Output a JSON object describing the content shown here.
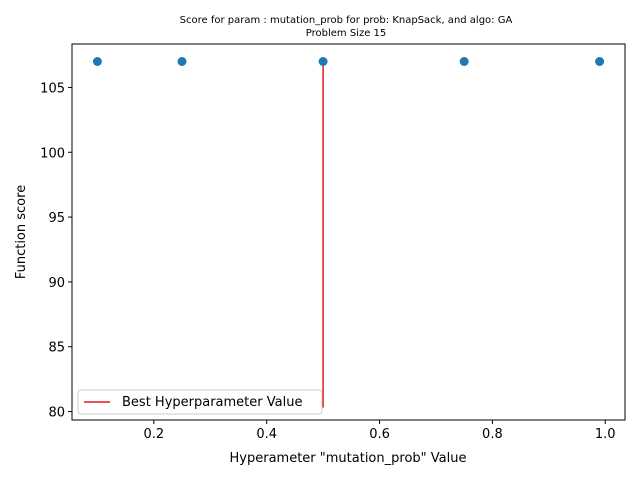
{
  "chart_data": {
    "type": "scatter",
    "title": "Score for param : mutation_prob for prob: KnapSack, and algo: GA",
    "subtitle": "Problem Size 15",
    "xlabel": "Hyperameter \"mutation_prob\" Value",
    "ylabel": "Function score",
    "xlim": [
      0.055,
      1.035
    ],
    "ylim": [
      79.35,
      108.35
    ],
    "xticks": [
      0.2,
      0.4,
      0.6,
      0.8,
      1.0
    ],
    "xtick_labels": [
      "0.2",
      "0.4",
      "0.6",
      "0.8",
      "1.0"
    ],
    "yticks": [
      80,
      85,
      90,
      95,
      100,
      105
    ],
    "ytick_labels": [
      "80",
      "85",
      "90",
      "95",
      "100",
      "105"
    ],
    "grid": false,
    "series": [
      {
        "type": "scatter",
        "color": "#1f77b4",
        "x": [
          0.1,
          0.25,
          0.5,
          0.75,
          0.99
        ],
        "y": [
          107,
          107,
          107,
          107,
          107
        ]
      }
    ],
    "best_line": {
      "label": "Best Hyperparameter Value",
      "x": 0.5,
      "y_from": 80.3,
      "y_to": 107,
      "color": "#e41a1c"
    },
    "legend": {
      "placement": "lower-left",
      "entries": [
        "Best Hyperparameter Value"
      ]
    }
  }
}
